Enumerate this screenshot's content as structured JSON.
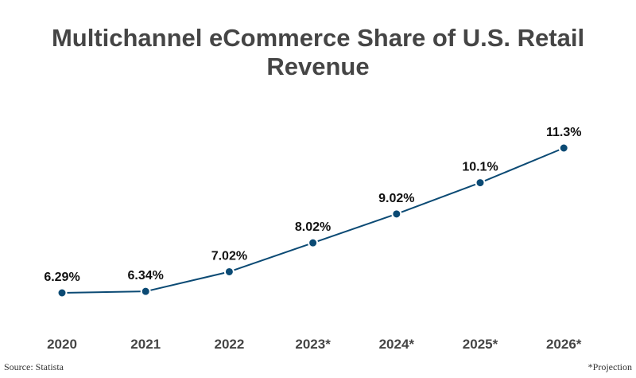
{
  "chart_data": {
    "type": "line",
    "title": "Multichannel eCommerce Share of U.S. Retail Revenue",
    "categories": [
      "2020",
      "2021",
      "2022",
      "2023*",
      "2024*",
      "2025*",
      "2026*"
    ],
    "values": [
      6.29,
      6.34,
      7.02,
      8.02,
      9.02,
      10.1,
      11.3
    ],
    "data_labels": [
      "6.29%",
      "6.34%",
      "7.02%",
      "8.02%",
      "9.02%",
      "10.1%",
      "11.3%"
    ],
    "grid": false,
    "line_color": "#0b4a74"
  },
  "footer": {
    "source": "Source: Statista",
    "note": "*Projection"
  }
}
